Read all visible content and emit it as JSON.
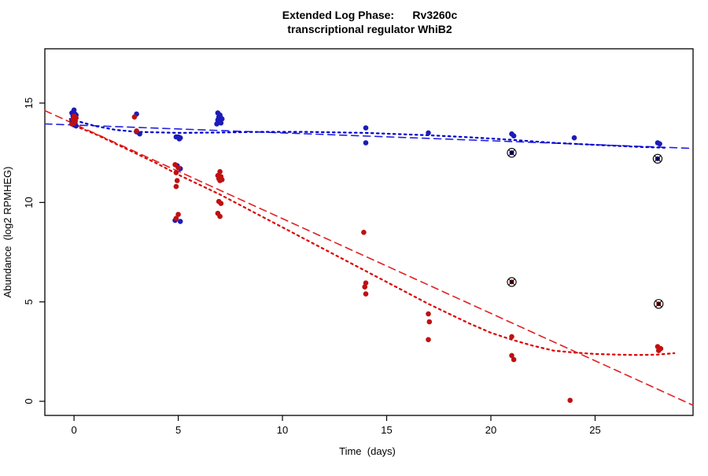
{
  "chart": {
    "title_line1": "Extended Log Phase:      Rv3260c",
    "title_line2": "transcriptional regulator WhiB2",
    "xlabel": "Time  (days)",
    "ylabel": "Abundance  (log2 RPMHEG)"
  },
  "chart_data": {
    "type": "scatter",
    "title": "Extended Log Phase: Rv3260c transcriptional regulator WhiB2",
    "xlabel": "Time (days)",
    "ylabel": "Abundance (log2 RPMHEG)",
    "x_ticks": [
      0,
      5,
      10,
      15,
      20,
      25
    ],
    "y_ticks": [
      0,
      5,
      10,
      15
    ],
    "xlim": [
      -1.4,
      29.7
    ],
    "ylim": [
      -0.71,
      17.73
    ],
    "grid": false,
    "legend": "none",
    "colors": {
      "blue_points": "#1c1cb8",
      "red_points": "#c01010",
      "blue_line": "#2222dd",
      "red_line": "#e02020",
      "outlier_ring": "#000000"
    },
    "series": [
      {
        "name": "blue-condition-points",
        "type": "points",
        "color": "#1c1cb8",
        "points": [
          [
            0,
            14.65
          ],
          [
            -0.1,
            14.5
          ],
          [
            0.05,
            14.45
          ],
          [
            0.1,
            14.4
          ],
          [
            -0.05,
            14.35
          ],
          [
            0.05,
            14.3
          ],
          [
            0,
            14.2
          ],
          [
            -0.1,
            14.1
          ],
          [
            0.05,
            14.0
          ],
          [
            0,
            13.9
          ],
          [
            0.1,
            13.85
          ],
          [
            3,
            14.45
          ],
          [
            3,
            13.55
          ],
          [
            3.15,
            13.45
          ],
          [
            4.9,
            13.3
          ],
          [
            5,
            13.3
          ],
          [
            5.1,
            13.25
          ],
          [
            5.05,
            13.2
          ],
          [
            4.95,
            11.85
          ],
          [
            5.1,
            11.7
          ],
          [
            4.85,
            9.1
          ],
          [
            5.1,
            9.05
          ],
          [
            6.9,
            14.5
          ],
          [
            7,
            14.4
          ],
          [
            6.95,
            14.3
          ],
          [
            7.05,
            14.25
          ],
          [
            7.1,
            14.2
          ],
          [
            6.9,
            14.15
          ],
          [
            7,
            14.1
          ],
          [
            7.05,
            14.0
          ],
          [
            6.85,
            13.95
          ],
          [
            14,
            13.75
          ],
          [
            14,
            13.0
          ],
          [
            17,
            13.5
          ],
          [
            21,
            13.45
          ],
          [
            21.1,
            13.35
          ],
          [
            24,
            13.25
          ],
          [
            28,
            13.0
          ],
          [
            28.1,
            12.95
          ]
        ]
      },
      {
        "name": "red-condition-points",
        "type": "points",
        "color": "#c01010",
        "points": [
          [
            0,
            14.35
          ],
          [
            0.1,
            14.25
          ],
          [
            -0.05,
            14.2
          ],
          [
            0.05,
            14.1
          ],
          [
            0,
            14.0
          ],
          [
            -0.1,
            13.95
          ],
          [
            2.9,
            14.3
          ],
          [
            3,
            13.6
          ],
          [
            4.85,
            11.9
          ],
          [
            5,
            11.75
          ],
          [
            4.9,
            11.5
          ],
          [
            4.95,
            11.1
          ],
          [
            4.9,
            10.8
          ],
          [
            5,
            9.4
          ],
          [
            4.9,
            9.2
          ],
          [
            7,
            11.55
          ],
          [
            6.9,
            11.35
          ],
          [
            7.05,
            11.3
          ],
          [
            6.95,
            11.2
          ],
          [
            7.1,
            11.15
          ],
          [
            7,
            11.1
          ],
          [
            6.95,
            10.05
          ],
          [
            7.05,
            9.95
          ],
          [
            6.9,
            9.45
          ],
          [
            7,
            9.3
          ],
          [
            13.9,
            8.5
          ],
          [
            14,
            5.95
          ],
          [
            13.95,
            5.75
          ],
          [
            14,
            5.4
          ],
          [
            17,
            4.4
          ],
          [
            17.05,
            4.0
          ],
          [
            17,
            3.1
          ],
          [
            21,
            3.25
          ],
          [
            21,
            2.3
          ],
          [
            21.1,
            2.1
          ],
          [
            23.8,
            0.05
          ],
          [
            28,
            2.75
          ],
          [
            28.15,
            2.65
          ],
          [
            28.05,
            2.55
          ]
        ]
      },
      {
        "name": "flagged-outlier-points",
        "type": "points-circled",
        "color": "#000000",
        "points": [
          [
            21,
            12.5
          ],
          [
            21,
            6.0
          ],
          [
            28,
            12.2
          ],
          [
            28.05,
            4.9
          ]
        ],
        "centers": [
          "#00008b",
          "#8b0000",
          "#00008b",
          "#8b0000"
        ]
      },
      {
        "name": "blue-linear-fit",
        "type": "line",
        "style": "dashed",
        "color": "#2222dd",
        "points": [
          [
            -1.4,
            13.95
          ],
          [
            29.7,
            12.72
          ]
        ]
      },
      {
        "name": "red-linear-fit",
        "type": "line",
        "style": "dashed",
        "color": "#e02020",
        "points": [
          [
            -1.4,
            14.62
          ],
          [
            29.7,
            -0.2
          ]
        ]
      },
      {
        "name": "blue-smooth-fit",
        "type": "line",
        "style": "dotted",
        "color": "#0000cd",
        "points": [
          [
            -0.2,
            14.2
          ],
          [
            1,
            13.85
          ],
          [
            2,
            13.65
          ],
          [
            3,
            13.55
          ],
          [
            5,
            13.5
          ],
          [
            7,
            13.52
          ],
          [
            9,
            13.55
          ],
          [
            11,
            13.55
          ],
          [
            14,
            13.5
          ],
          [
            17,
            13.38
          ],
          [
            19,
            13.28
          ],
          [
            21,
            13.15
          ],
          [
            23,
            13.0
          ],
          [
            25,
            12.9
          ],
          [
            27,
            12.8
          ],
          [
            28.5,
            12.75
          ]
        ]
      },
      {
        "name": "red-smooth-fit",
        "type": "line",
        "style": "dotted",
        "color": "#dd0000",
        "points": [
          [
            -0.2,
            13.95
          ],
          [
            1,
            13.45
          ],
          [
            2,
            12.95
          ],
          [
            3,
            12.45
          ],
          [
            4,
            11.95
          ],
          [
            5,
            11.4
          ],
          [
            6,
            10.9
          ],
          [
            7,
            10.4
          ],
          [
            8,
            9.85
          ],
          [
            9,
            9.3
          ],
          [
            10,
            8.75
          ],
          [
            11,
            8.2
          ],
          [
            12,
            7.65
          ],
          [
            13,
            7.1
          ],
          [
            14,
            6.55
          ],
          [
            15,
            6.0
          ],
          [
            16,
            5.45
          ],
          [
            17,
            4.9
          ],
          [
            18,
            4.4
          ],
          [
            19,
            3.9
          ],
          [
            20,
            3.45
          ],
          [
            21,
            3.1
          ],
          [
            22,
            2.8
          ],
          [
            23,
            2.55
          ],
          [
            24,
            2.45
          ],
          [
            25,
            2.38
          ],
          [
            26,
            2.35
          ],
          [
            27,
            2.33
          ],
          [
            28,
            2.35
          ],
          [
            28.8,
            2.42
          ]
        ]
      }
    ]
  }
}
